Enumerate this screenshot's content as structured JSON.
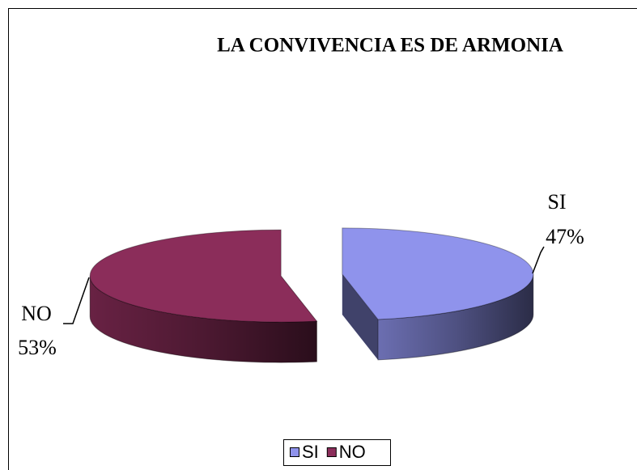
{
  "chart_data": {
    "type": "pie",
    "title": "LA CONVIVENCIA ES DE ARMONIA",
    "categories": [
      "SI",
      "NO"
    ],
    "values": [
      47,
      53
    ],
    "value_labels": [
      "47%",
      "53%"
    ],
    "colors": [
      "#8f93ec",
      "#8b2d5a"
    ],
    "legend": "bottom"
  }
}
